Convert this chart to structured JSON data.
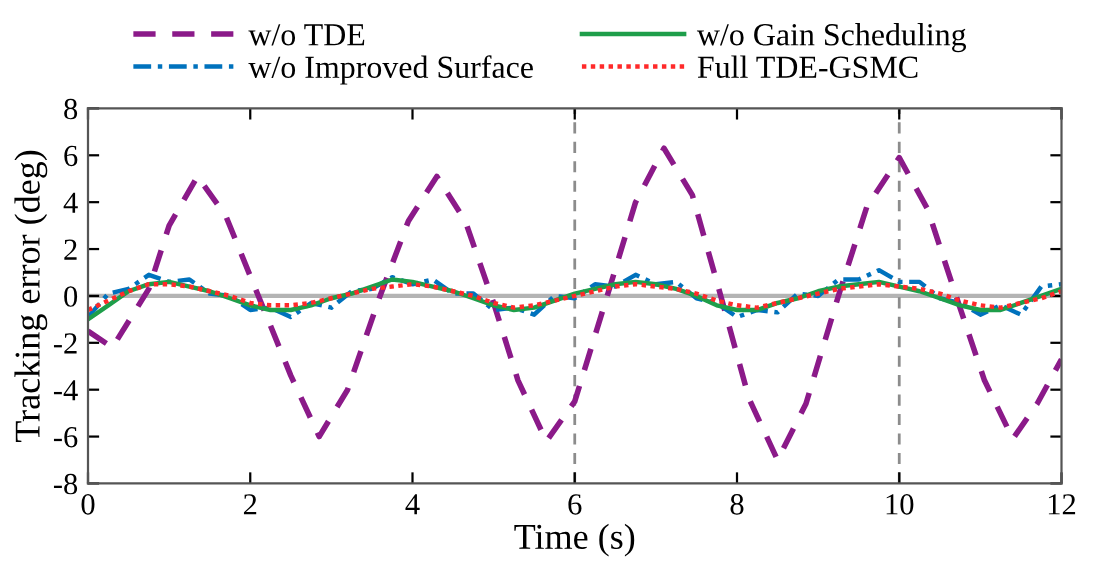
{
  "chart_data": {
    "type": "line",
    "xlabel": "Time (s)",
    "ylabel": "Tracking error (deg)",
    "xlim": [
      0,
      12
    ],
    "xticks": [
      0,
      2,
      4,
      6,
      8,
      10,
      12
    ],
    "ylim": [
      -8,
      8
    ],
    "yticks": [
      -8,
      -6,
      -4,
      -2,
      0,
      2,
      4,
      6,
      8
    ],
    "grid": false,
    "legend": "top",
    "marker": "none",
    "x": [
      0,
      0.25,
      0.5,
      0.75,
      1,
      1.25,
      1.5,
      1.75,
      2,
      2.25,
      2.5,
      2.75,
      3,
      3.25,
      3.5,
      3.75,
      4,
      4.25,
      4.5,
      4.75,
      5,
      5.25,
      5.5,
      5.75,
      6,
      6.25,
      6.5,
      6.75,
      7,
      7.25,
      7.5,
      7.75,
      8,
      8.25,
      8.5,
      8.75,
      9,
      9.25,
      9.5,
      9.75,
      10,
      10.25,
      10.5,
      10.75,
      11,
      11.25,
      11.5,
      11.75,
      12
    ],
    "series": [
      {
        "name": "w/o TDE",
        "color": "#8b1a89",
        "line_style": "dashed",
        "x": [
          0,
          0.3,
          0.75,
          1.0,
          1.35,
          1.7,
          2.1,
          2.5,
          2.85,
          3.2,
          3.6,
          3.95,
          4.3,
          4.65,
          5.0,
          5.3,
          5.65,
          6.0,
          6.4,
          6.75,
          7.1,
          7.45,
          7.8,
          8.15,
          8.5,
          8.85,
          9.25,
          9.6,
          10.0,
          10.35,
          10.7,
          11.05,
          11.4,
          11.7,
          12
        ],
        "values": [
          -1.5,
          -2.2,
          0.3,
          3.0,
          5.1,
          3.4,
          0,
          -3.4,
          -6.0,
          -4.0,
          0,
          3.2,
          5.1,
          3.2,
          -0.3,
          -3.6,
          -6.2,
          -4.5,
          0,
          4.0,
          6.3,
          4.3,
          0,
          -4.4,
          -7.0,
          -4.6,
          0,
          3.8,
          5.9,
          3.7,
          0,
          -3.6,
          -6.1,
          -4.6,
          -2.7
        ]
      },
      {
        "name": "w/o Improved Surface",
        "color": "#0072bd",
        "line_style": "dashdot",
        "values": [
          -0.9,
          0.1,
          0.3,
          0.9,
          0.6,
          0.7,
          0.1,
          0.0,
          -0.6,
          -0.5,
          -0.9,
          -0.3,
          -0.5,
          0.2,
          0.3,
          0.8,
          0.5,
          0.7,
          0.1,
          0.1,
          -0.6,
          -0.5,
          -0.8,
          0.0,
          -0.1,
          0.5,
          0.4,
          0.9,
          0.5,
          0.6,
          -0.1,
          -0.3,
          -0.9,
          -0.6,
          -0.7,
          0.1,
          0.0,
          0.7,
          0.7,
          1.1,
          0.6,
          0.6,
          -0.1,
          -0.3,
          -0.8,
          -0.4,
          -0.8,
          0.4,
          0.5
        ]
      },
      {
        "name": "w/o Gain Scheduling",
        "color": "#1e9e4a",
        "line_style": "solid",
        "values": [
          -1.0,
          -0.4,
          0.2,
          0.5,
          0.6,
          0.4,
          0.2,
          -0.1,
          -0.4,
          -0.6,
          -0.6,
          -0.4,
          -0.1,
          0.1,
          0.4,
          0.7,
          0.6,
          0.4,
          0.2,
          -0.1,
          -0.4,
          -0.6,
          -0.5,
          -0.2,
          0.1,
          0.3,
          0.5,
          0.6,
          0.5,
          0.3,
          0,
          -0.4,
          -0.6,
          -0.6,
          -0.3,
          -0.1,
          0.2,
          0.4,
          0.5,
          0.6,
          0.4,
          0.2,
          -0.1,
          -0.4,
          -0.6,
          -0.6,
          -0.3,
          0,
          0.3
        ]
      },
      {
        "name": "Full TDE-GSMC",
        "color": "#ff2a2a",
        "line_style": "dotted",
        "values": [
          -0.6,
          -0.2,
          0.2,
          0.5,
          0.5,
          0.4,
          0.2,
          0,
          -0.3,
          -0.4,
          -0.4,
          -0.3,
          -0.1,
          0.1,
          0.3,
          0.4,
          0.5,
          0.4,
          0.2,
          0,
          -0.3,
          -0.5,
          -0.4,
          -0.2,
          0,
          0.2,
          0.4,
          0.5,
          0.4,
          0.3,
          0.1,
          -0.2,
          -0.4,
          -0.5,
          -0.3,
          -0.1,
          0.1,
          0.3,
          0.4,
          0.5,
          0.4,
          0.3,
          0.1,
          -0.2,
          -0.4,
          -0.5,
          -0.3,
          -0.1,
          0.2
        ]
      }
    ],
    "ref_lines": [
      {
        "axis": "y",
        "value": 0,
        "color": "#b4b4b4",
        "line_style": "solid"
      },
      {
        "axis": "x",
        "value": 6,
        "color": "#8c8c8c",
        "line_style": "dashed"
      },
      {
        "axis": "x",
        "value": 10,
        "color": "#8c8c8c",
        "line_style": "dashed"
      }
    ]
  }
}
